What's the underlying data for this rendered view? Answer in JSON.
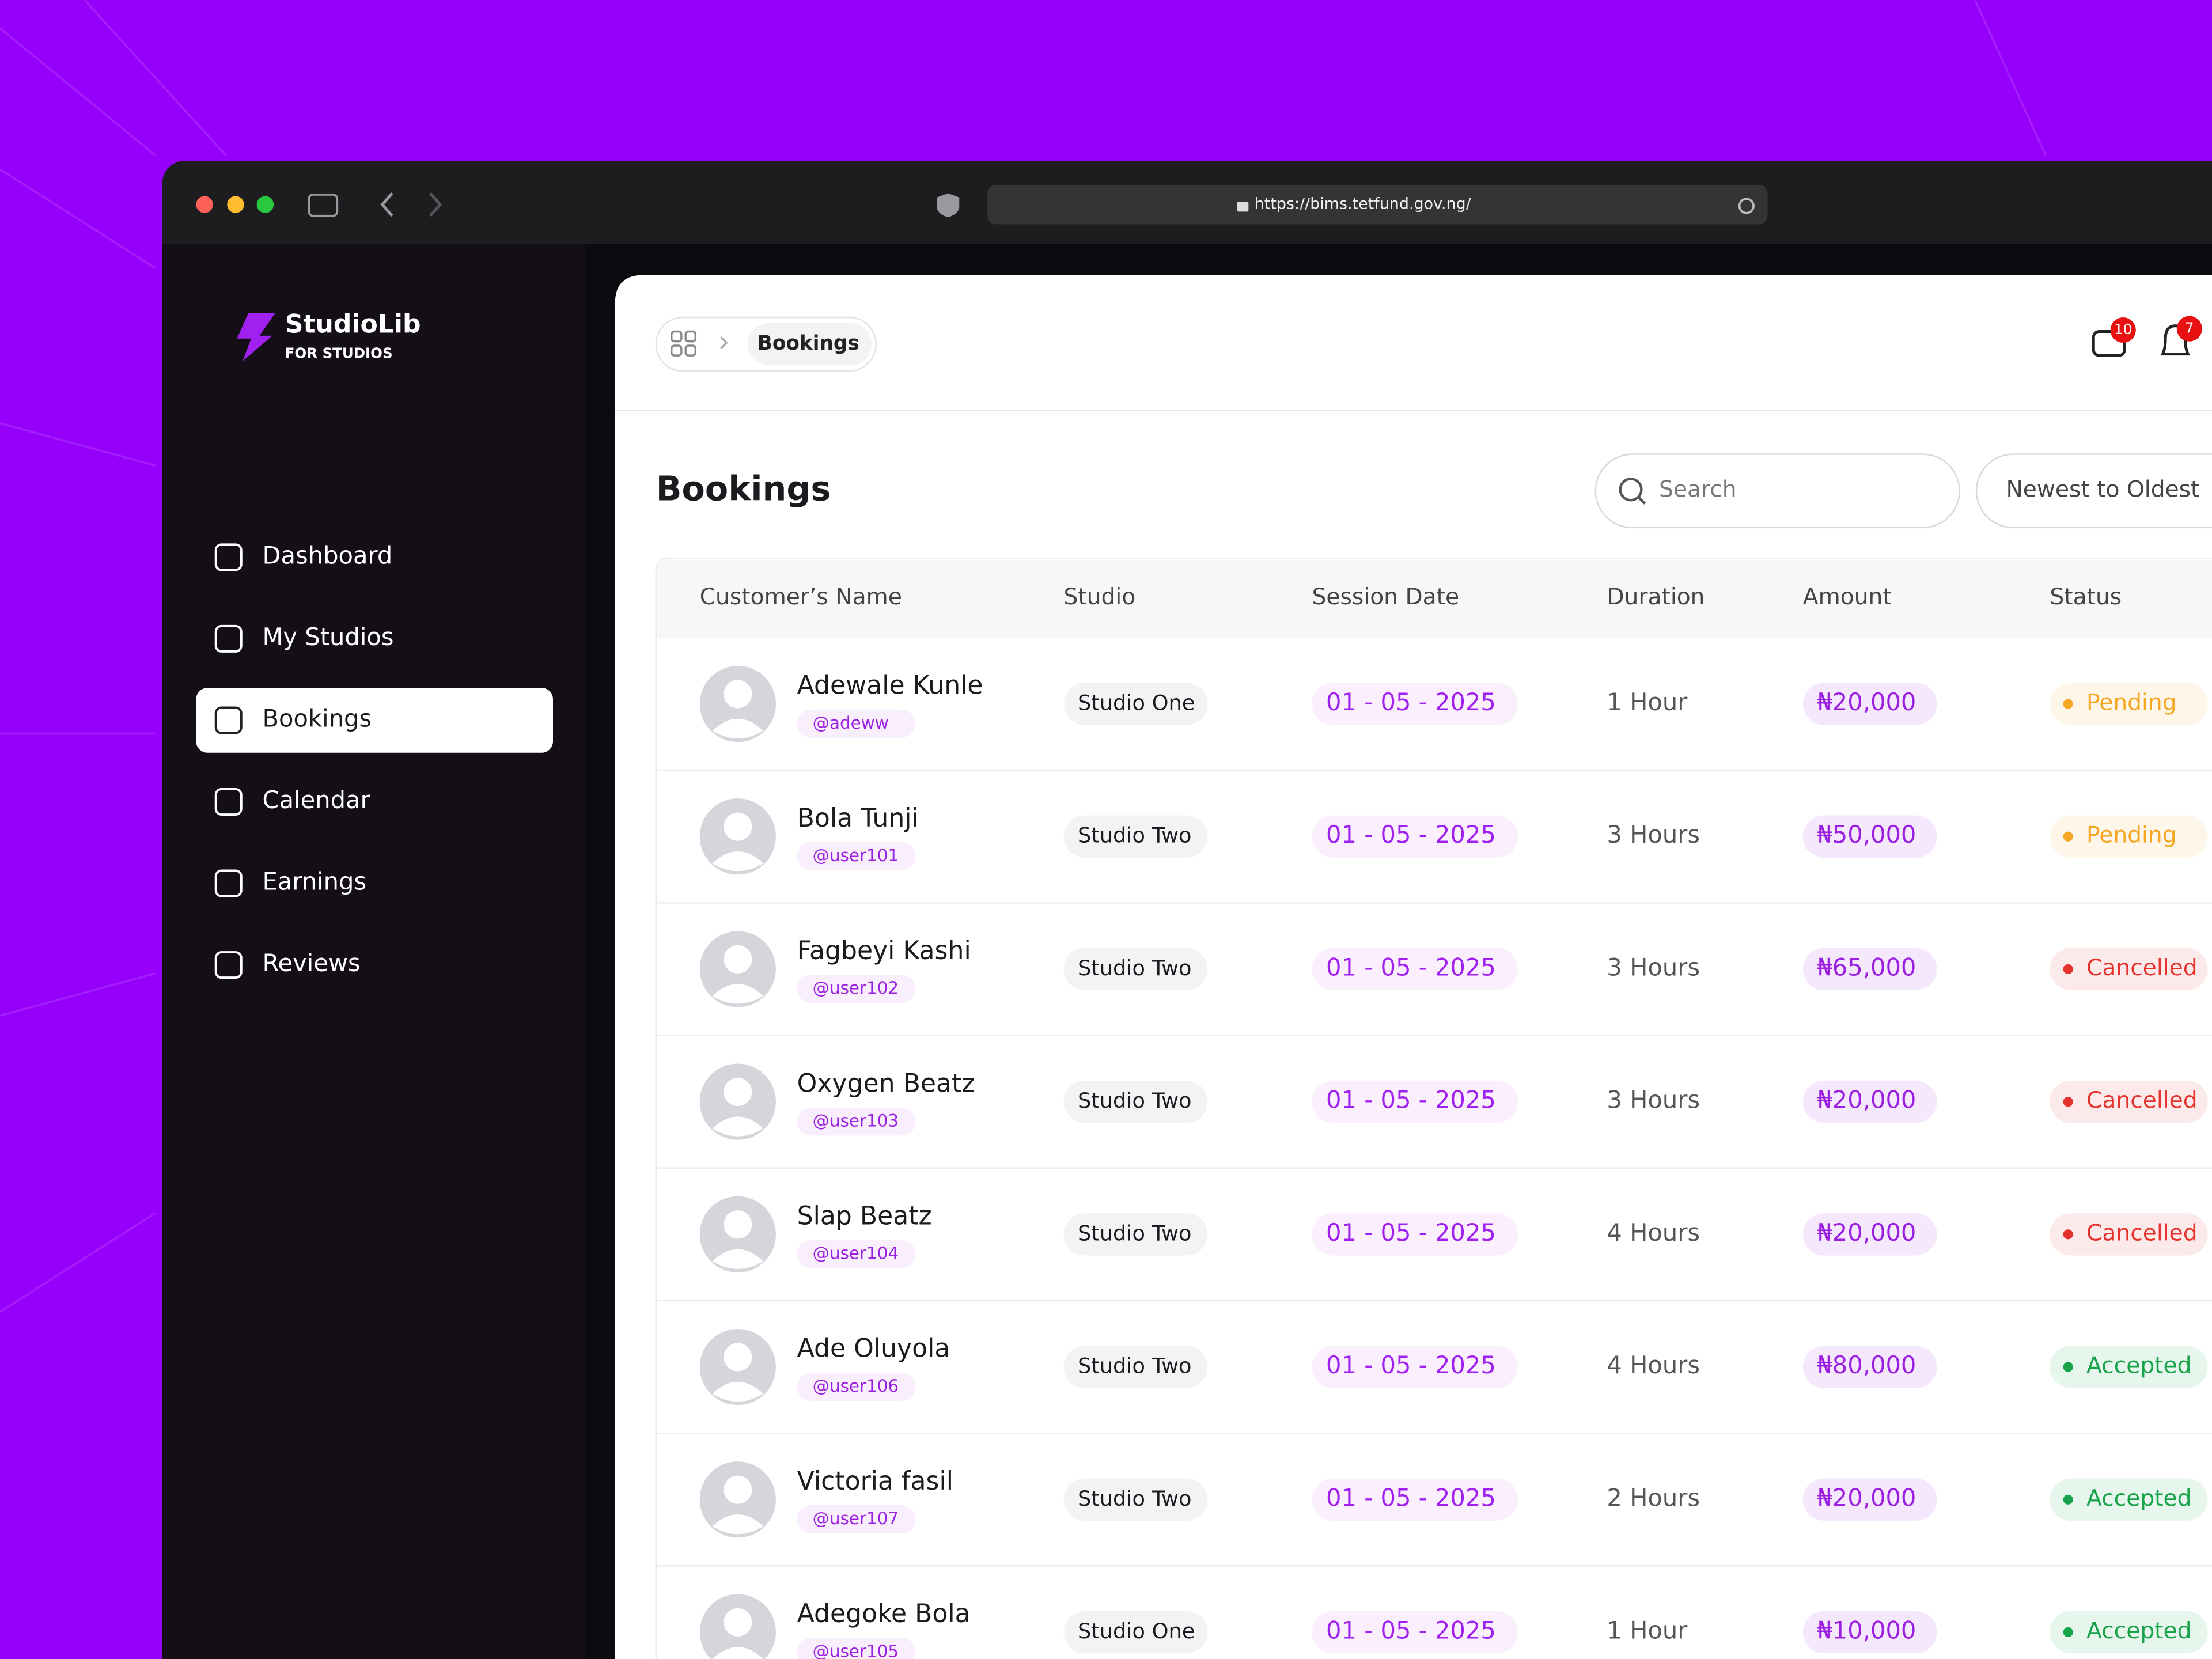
{
  "browser": {
    "url": "https://bims.tetfund.gov.ng/"
  },
  "sidebar": {
    "brand": "StudioLib",
    "tagline": "FOR STUDIOS",
    "active": 2,
    "nav": [
      "Dashboard",
      "My Studios",
      "Bookings",
      "Calendar",
      "Earnings",
      "Reviews"
    ]
  },
  "header": {
    "breadcrumb": "Bookings",
    "mail_badge": "10",
    "bell_badge": "7"
  },
  "page": {
    "title": "Bookings",
    "search_placeholder": "Search",
    "sort": "Newest to Oldest"
  },
  "table": {
    "columns": [
      "Customer’s Name",
      "Studio",
      "Session Date",
      "Duration",
      "Amount",
      "Status"
    ],
    "rows": [
      {
        "name": "Adewale Kunle",
        "handle": "@adeww",
        "studio": "Studio One",
        "date": "01 - 05 - 2025",
        "duration": "1 Hour",
        "amount": "₦20,000",
        "status": "Pending",
        "status_color": "#f5a623"
      },
      {
        "name": "Bola Tunji",
        "handle": "@user101",
        "studio": "Studio Two",
        "date": "01 - 05 - 2025",
        "duration": "3 Hours",
        "amount": "₦50,000",
        "status": "Pending",
        "status_color": "#f5a623"
      },
      {
        "name": "Fagbeyi Kashi",
        "handle": "@user102",
        "studio": "Studio Two",
        "date": "01 - 05 - 2025",
        "duration": "3 Hours",
        "amount": "₦65,000",
        "status": "Cancelled",
        "status_color": "#e5322d"
      },
      {
        "name": "Oxygen Beatz",
        "handle": "@user103",
        "studio": "Studio Two",
        "date": "01 - 05 - 2025",
        "duration": "3 Hours",
        "amount": "₦20,000",
        "status": "Cancelled",
        "status_color": "#e5322d"
      },
      {
        "name": "Slap Beatz",
        "handle": "@user104",
        "studio": "Studio Two",
        "date": "01 - 05 - 2025",
        "duration": "4 Hours",
        "amount": "₦20,000",
        "status": "Cancelled",
        "status_color": "#e5322d"
      },
      {
        "name": "Ade Oluyola",
        "handle": "@user106",
        "studio": "Studio Two",
        "date": "01 - 05 - 2025",
        "duration": "4 Hours",
        "amount": "₦80,000",
        "status": "Accepted",
        "status_color": "#17a34a"
      },
      {
        "name": "Victoria fasil",
        "handle": "@user107",
        "studio": "Studio Two",
        "date": "01 - 05 - 2025",
        "duration": "2 Hours",
        "amount": "₦20,000",
        "status": "Accepted",
        "status_color": "#17a34a"
      },
      {
        "name": "Adegoke Bola",
        "handle": "@user105",
        "studio": "Studio One",
        "date": "01 - 05 - 2025",
        "duration": "1 Hour",
        "amount": "₦10,000",
        "status": "Accepted",
        "status_color": "#17a34a"
      }
    ]
  }
}
